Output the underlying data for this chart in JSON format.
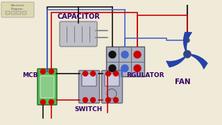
{
  "bg_color": "#f0ead8",
  "label_color": "#330066",
  "wire_black": "#111111",
  "wire_red": "#cc0000",
  "wire_blue": "#4466cc",
  "wire_gray": "#888888",
  "capacitor_color": "#c0c0c8",
  "capacitor_edge": "#888888",
  "fan_color": "#2244aa",
  "mcb_color": "#55bb55",
  "mcb_edge": "#226622",
  "switch_color": "#aaaabc",
  "switch_edge": "#666677",
  "connector_color": "#aab0c0",
  "connector_edge": "#555566",
  "logo_color": "#ddd8b0",
  "labels": {
    "capacitor": "CAPACITOR",
    "fan": "FAN",
    "mcb": "MCB",
    "switch": "SWITCH",
    "regulator": "RGULATOR"
  },
  "label_fontsize": 6.5,
  "lw": 1.2
}
